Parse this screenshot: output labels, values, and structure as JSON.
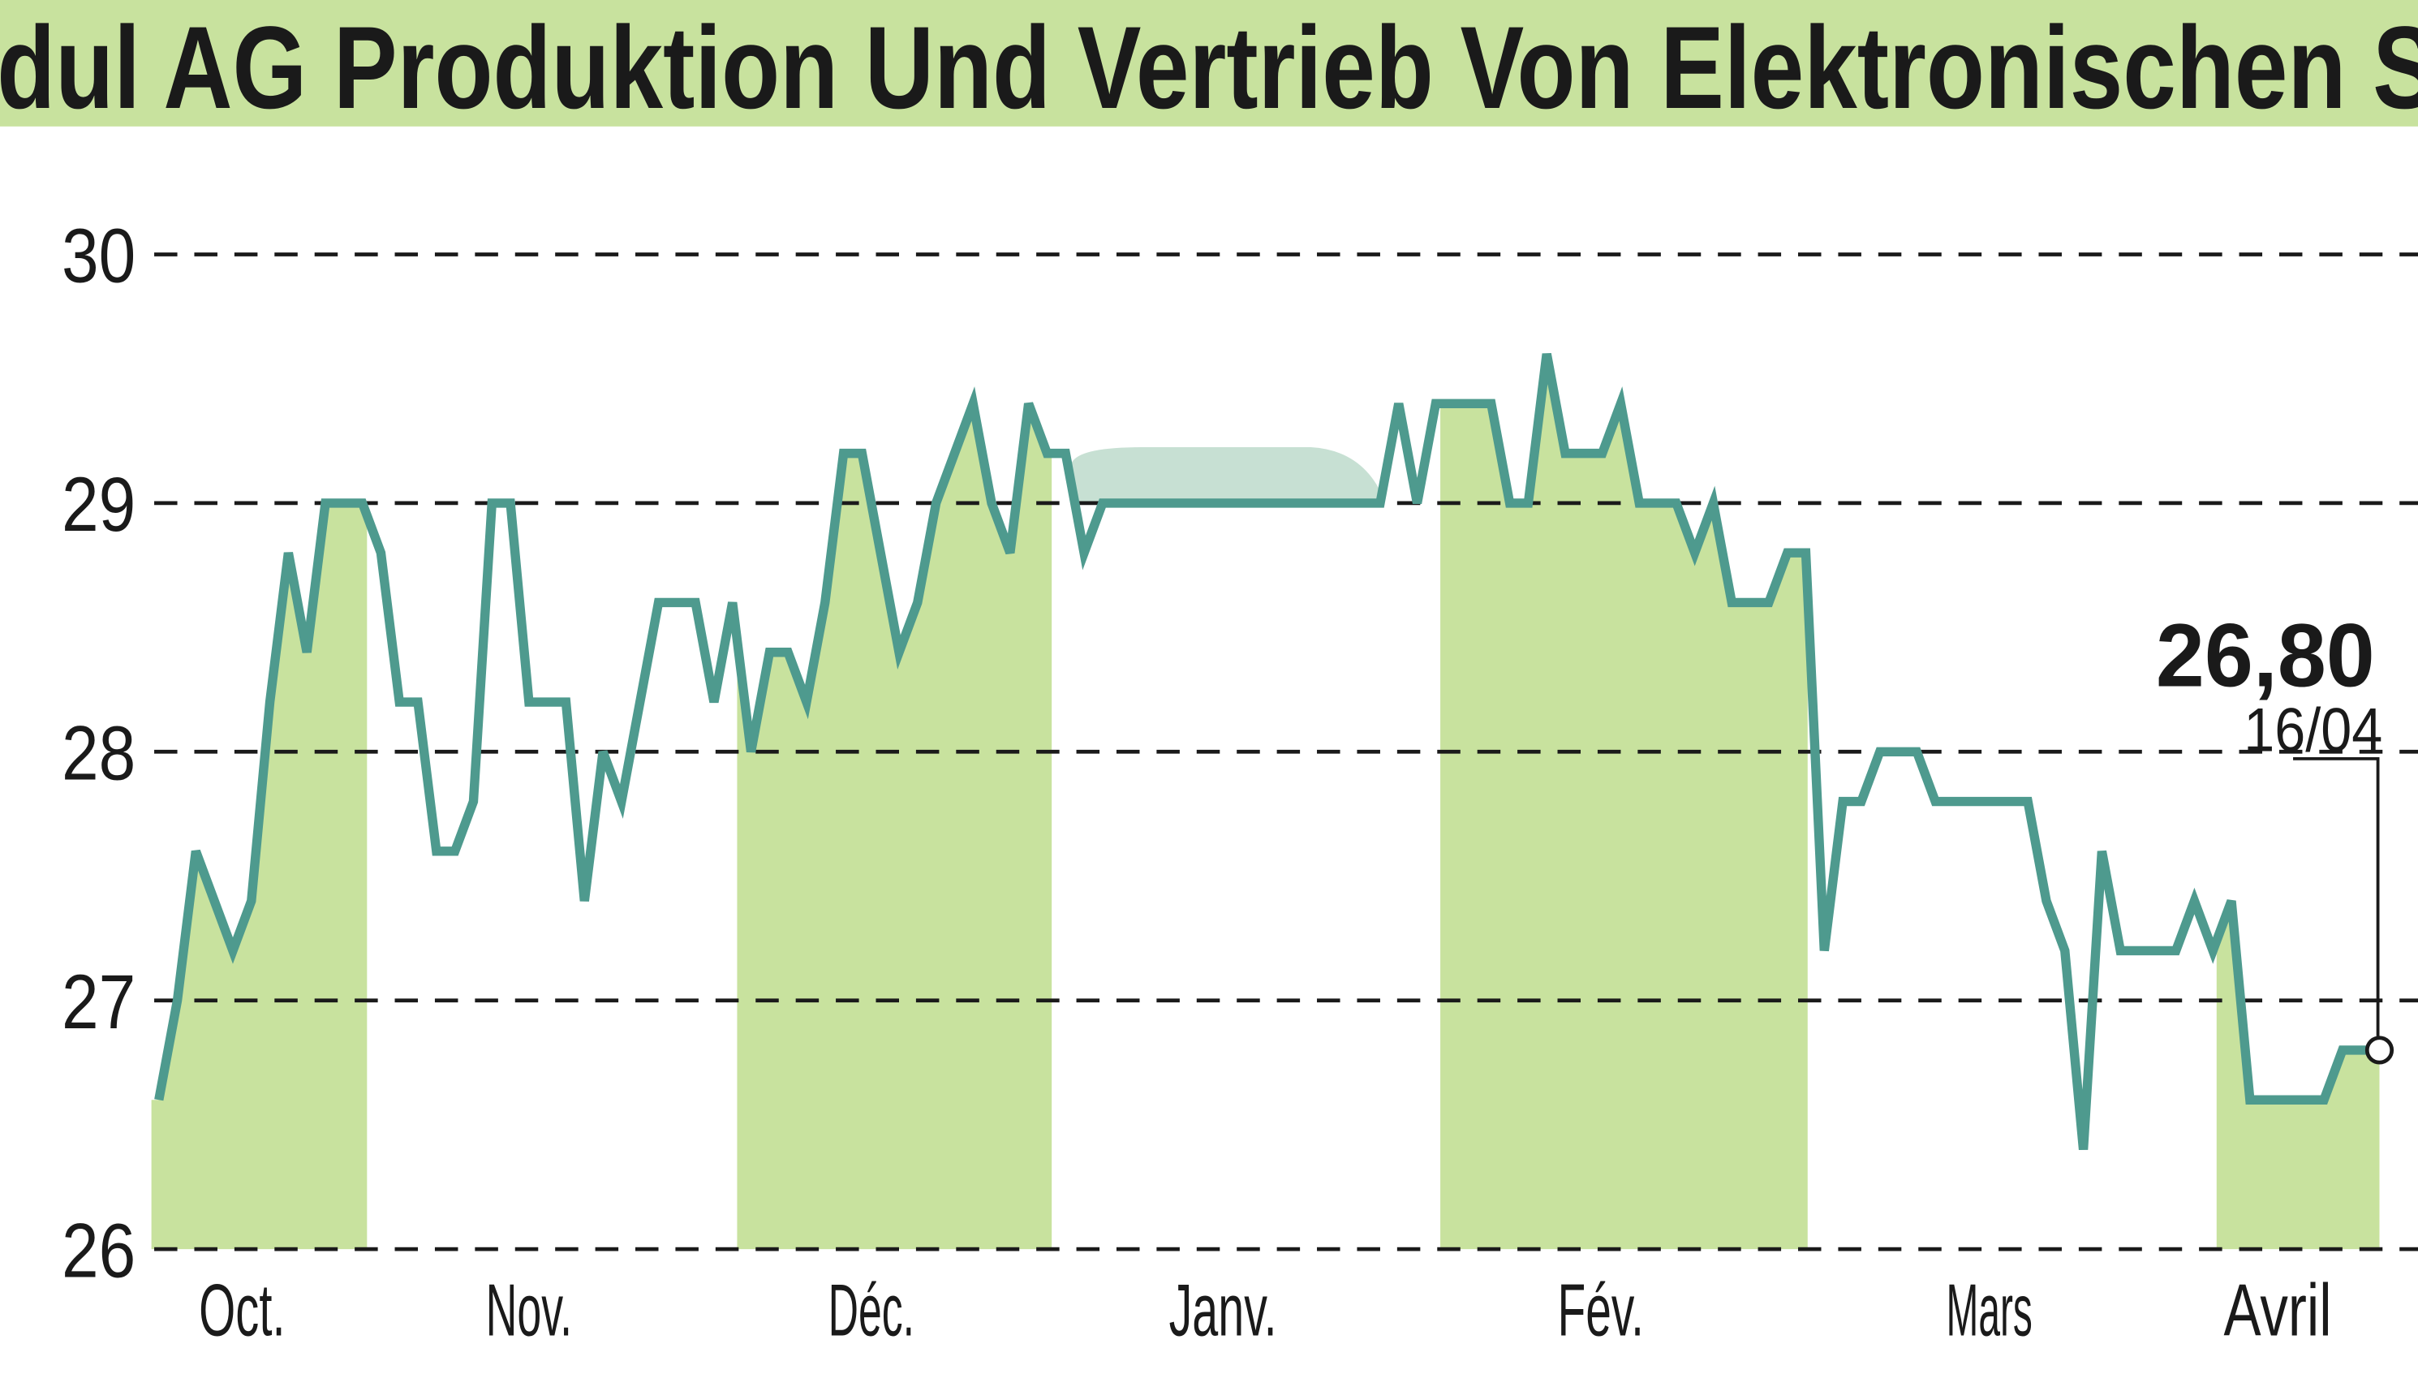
{
  "title": "dul AG Produktion Und Vertrieb Von Elektronischen S",
  "colors": {
    "title_band": "#c8e29e",
    "shade": "#c8e29e",
    "line": "#4e9a8e",
    "grid": "#1a1a1a"
  },
  "chart_data": {
    "type": "line",
    "title": "dul AG Produktion Und Vertrieb Von Elektronischen S",
    "ylim": [
      26,
      30
    ],
    "yticks": [
      "26",
      "27",
      "28",
      "29",
      "30"
    ],
    "grid": true,
    "months": [
      "Oct.",
      "Nov.",
      "Déc.",
      "Janv.",
      "Fév.",
      "Mars",
      "Avril"
    ],
    "shaded_months": [
      "Oct.",
      "Déc.",
      "Fév.",
      "Avril"
    ],
    "values": [
      26.6,
      27.0,
      27.6,
      27.4,
      27.2,
      27.4,
      28.2,
      28.8,
      28.4,
      29.0,
      29.0,
      29.0,
      28.8,
      28.2,
      28.2,
      27.6,
      27.6,
      27.8,
      29.0,
      29.0,
      28.2,
      28.2,
      28.2,
      27.4,
      28.0,
      27.8,
      28.2,
      28.6,
      28.6,
      28.6,
      28.2,
      28.6,
      28.0,
      28.4,
      28.4,
      28.2,
      28.6,
      29.2,
      29.2,
      28.8,
      28.4,
      28.6,
      29.0,
      29.2,
      29.4,
      29.0,
      28.8,
      29.4,
      29.2,
      29.2,
      28.8,
      29.0,
      29.0,
      29.0,
      29.0,
      29.0,
      29.0,
      29.0,
      29.0,
      29.0,
      29.0,
      29.0,
      29.0,
      29.0,
      29.0,
      29.0,
      29.0,
      29.4,
      29.0,
      29.4,
      29.4,
      29.4,
      29.4,
      29.0,
      29.0,
      29.6,
      29.2,
      29.2,
      29.2,
      29.4,
      29.0,
      29.0,
      29.0,
      28.8,
      29.0,
      28.6,
      28.6,
      28.6,
      28.8,
      28.8,
      27.2,
      27.8,
      27.8,
      28.0,
      28.0,
      28.0,
      27.8,
      27.8,
      27.8,
      27.8,
      27.8,
      27.8,
      27.4,
      27.2,
      26.4,
      27.6,
      27.2,
      27.2,
      27.2,
      27.2,
      27.4,
      27.2,
      27.4,
      26.6,
      26.6,
      26.6,
      26.6,
      26.6,
      26.8,
      26.8,
      26.8
    ],
    "last": {
      "value_label": "26,80",
      "date_label": "16/04",
      "value": 26.8
    }
  }
}
